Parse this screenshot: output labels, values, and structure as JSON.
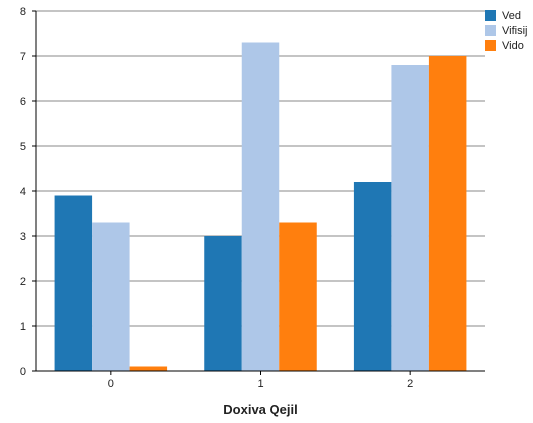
{
  "chart_data": {
    "type": "bar",
    "title": "",
    "xlabel": "Doxiva Qejil",
    "ylabel": "",
    "categories": [
      "0",
      "1",
      "2"
    ],
    "ylim": [
      0,
      8
    ],
    "yticks": [
      "0",
      "1",
      "2",
      "3",
      "4",
      "5",
      "6",
      "7",
      "8"
    ],
    "grid": true,
    "legend_position": "top-right",
    "series": [
      {
        "name": "Ved",
        "color": "#1f77b4",
        "values": [
          3.9,
          3.0,
          4.2
        ]
      },
      {
        "name": "Vifisij",
        "color": "#aec7e8",
        "values": [
          3.3,
          7.3,
          6.8
        ]
      },
      {
        "name": "Vido",
        "color": "#ff7f0e",
        "values": [
          0.1,
          3.3,
          7.0
        ]
      }
    ]
  }
}
